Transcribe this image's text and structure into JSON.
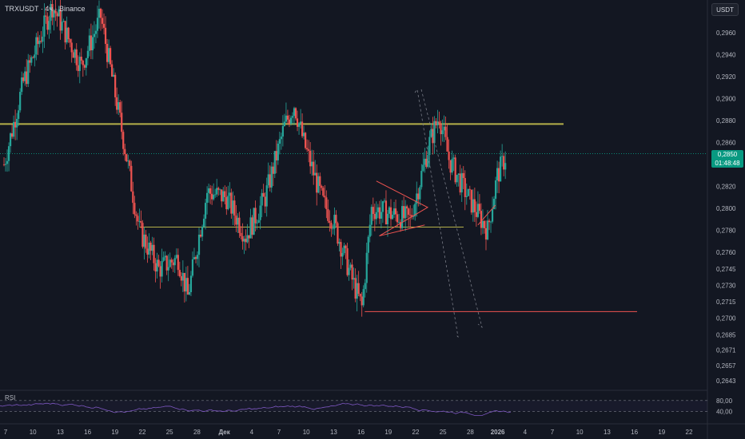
{
  "header": {
    "symbol_title": "TRXUSDT · 4ч · Binance",
    "currency_button": "USDT"
  },
  "price_axis": {
    "labels": [
      "0,2980",
      "0,2960",
      "0,2940",
      "0,2920",
      "0,2900",
      "0,2880",
      "0,2860",
      "0,2840",
      "0,2820",
      "0,2800",
      "0,2780",
      "0,2760",
      "0,2745",
      "0,2730",
      "0,2715",
      "0,2700",
      "0,2685",
      "0,2671",
      "0,2657",
      "0,2643"
    ]
  },
  "current_price": {
    "value": "0,2850",
    "countdown": "01:48:48"
  },
  "time_axis": {
    "labels": [
      "7",
      "10",
      "13",
      "16",
      "19",
      "22",
      "25",
      "28",
      "Дек",
      "4",
      "7",
      "10",
      "13",
      "16",
      "19",
      "22",
      "25",
      "28",
      "2026",
      "4",
      "7",
      "10",
      "13",
      "16",
      "19",
      "22"
    ]
  },
  "rsi": {
    "label": "RSI",
    "levels": [
      "80,00",
      "40,00"
    ],
    "current": "59,71"
  },
  "colors": {
    "background": "#131722",
    "candle_up": "#26a69a",
    "candle_down": "#ef5350",
    "resistance_line": "#b5b04a",
    "support_line": "#ef5350",
    "rsi_line": "#7e57c2",
    "price_tag": "#089981"
  },
  "chart_data": {
    "type": "candlestick",
    "symbol": "TRXUSDT",
    "timeframe": "4ч",
    "exchange": "Binance",
    "ylim": [
      0.2635,
      0.299
    ],
    "key_points": [
      {
        "date": "Nov 7",
        "close": 0.284
      },
      {
        "date": "Nov 9",
        "close": 0.2915
      },
      {
        "date": "Nov 12",
        "close": 0.2985
      },
      {
        "date": "Nov 15",
        "close": 0.293
      },
      {
        "date": "Nov 17",
        "close": 0.2975
      },
      {
        "date": "Nov 19",
        "close": 0.288
      },
      {
        "date": "Nov 21",
        "close": 0.278
      },
      {
        "date": "Nov 23",
        "close": 0.2745
      },
      {
        "date": "Nov 25",
        "close": 0.2755
      },
      {
        "date": "Nov 26",
        "close": 0.272
      },
      {
        "date": "Nov 28",
        "close": 0.2815
      },
      {
        "date": "Nov 30",
        "close": 0.281
      },
      {
        "date": "Dec 2",
        "close": 0.2775
      },
      {
        "date": "Dec 4",
        "close": 0.281
      },
      {
        "date": "Dec 6",
        "close": 0.2875
      },
      {
        "date": "Dec 7",
        "close": 0.2895
      },
      {
        "date": "Dec 8",
        "close": 0.286
      },
      {
        "date": "Dec 10",
        "close": 0.2805
      },
      {
        "date": "Dec 11",
        "close": 0.279
      },
      {
        "date": "Dec 13",
        "close": 0.2735
      },
      {
        "date": "Dec 14",
        "close": 0.271
      },
      {
        "date": "Dec 15",
        "close": 0.28
      },
      {
        "date": "Dec 17",
        "close": 0.2795
      },
      {
        "date": "Dec 19",
        "close": 0.279
      },
      {
        "date": "Dec 21",
        "close": 0.286
      },
      {
        "date": "Dec 22",
        "close": 0.2885
      },
      {
        "date": "Dec 23",
        "close": 0.2845
      },
      {
        "date": "Dec 25",
        "close": 0.281
      },
      {
        "date": "Dec 27",
        "close": 0.278
      },
      {
        "date": "Dec 28",
        "close": 0.283
      },
      {
        "date": "Dec 29",
        "close": 0.285
      }
    ],
    "annotations": {
      "resistance_level": 0.2877,
      "support_level": 0.2783,
      "low_level": 0.2706,
      "current_price": 0.285
    }
  }
}
